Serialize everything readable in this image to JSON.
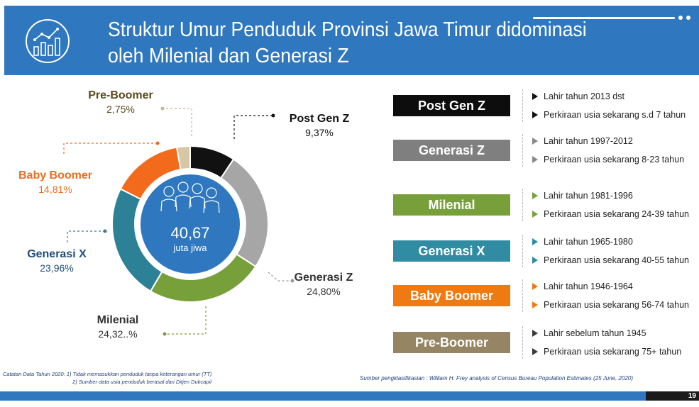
{
  "header": {
    "title_line1": "Struktur Umur Penduduk Provinsi Jawa Timur didominasi",
    "title_line2": "oleh Milenial dan Generasi Z"
  },
  "chart_data": {
    "type": "pie",
    "center_value": "40,67",
    "center_unit": "juta jiwa",
    "slices": [
      {
        "name": "Post Gen Z",
        "label": "9,37%",
        "value": 9.37,
        "color": "#111111"
      },
      {
        "name": "Generasi Z",
        "label": "24,80%",
        "value": 24.8,
        "color": "#a6a6a6"
      },
      {
        "name": "Milenial",
        "label": "24,32..%",
        "value": 24.32,
        "color": "#77a03a"
      },
      {
        "name": "Generasi X",
        "label": "23,96%",
        "value": 23.96,
        "color": "#2d8196"
      },
      {
        "name": "Baby Boomer",
        "label": "14,81%",
        "value": 14.81,
        "color": "#f26b1d"
      },
      {
        "name": "Pre-Boomer",
        "label": "2,75%",
        "value": 2.75,
        "color": "#d8c7a6"
      }
    ]
  },
  "label_colors": {
    "Post Gen Z": "#111111",
    "Generasi Z": "#333333",
    "Milenial": "#333333",
    "Generasi X": "#1f4e79",
    "Baby Boomer": "#f26b1d",
    "Pre-Boomer": "#5a4a20"
  },
  "generations": [
    {
      "name": "Post Gen Z",
      "color": "#0d0d0d",
      "tri": "#111111",
      "info1": "Lahir tahun 2013 dst",
      "info2": "Perkiraan usia sekarang s.d 7 tahun"
    },
    {
      "name": "Generasi Z",
      "color": "#7f7f7f",
      "tri": "#888888",
      "info1": "Lahir tahun 1997-2012",
      "info2": "Perkiraan usia sekarang 8-23 tahun"
    },
    {
      "name": "Milenial",
      "color": "#77a03a",
      "tri": "#77a03a",
      "info1": "Lahir tahun 1981-1996",
      "info2": "Perkiraan usia sekarang 24-39 tahun"
    },
    {
      "name": "Generasi X",
      "color": "#2f8ca2",
      "tri": "#2f8ca2",
      "info1": "Lahir tahun 1965-1980",
      "info2": "Perkiraan usia sekarang 40-55 tahun"
    },
    {
      "name": "Baby Boomer",
      "color": "#f07a12",
      "tri": "#f07a12",
      "info1": "Lahir tahun 1946-1964",
      "info2": "Perkiraan usia sekarang 56-74 tahun"
    },
    {
      "name": "Pre-Boomer",
      "color": "#958563",
      "tri": "#3a3a3a",
      "info1": "Lahir sebelum tahun 1945",
      "info2": "Perkiraan usia sekarang 75+ tahun"
    }
  ],
  "footer": {
    "note1": "Catatan Data Tahun 2020: 1)  Tidak memasukkan penduduk tanpa keterangan umur (TT)",
    "note2": "2) Sumber data usia penduduk berasal dari Ditjen Dukcapil",
    "source": "Sumber pengklasifikasian : William H. Frey analysis of Census Bureau Population Estimates (25 June, 2020)",
    "page": "19"
  }
}
